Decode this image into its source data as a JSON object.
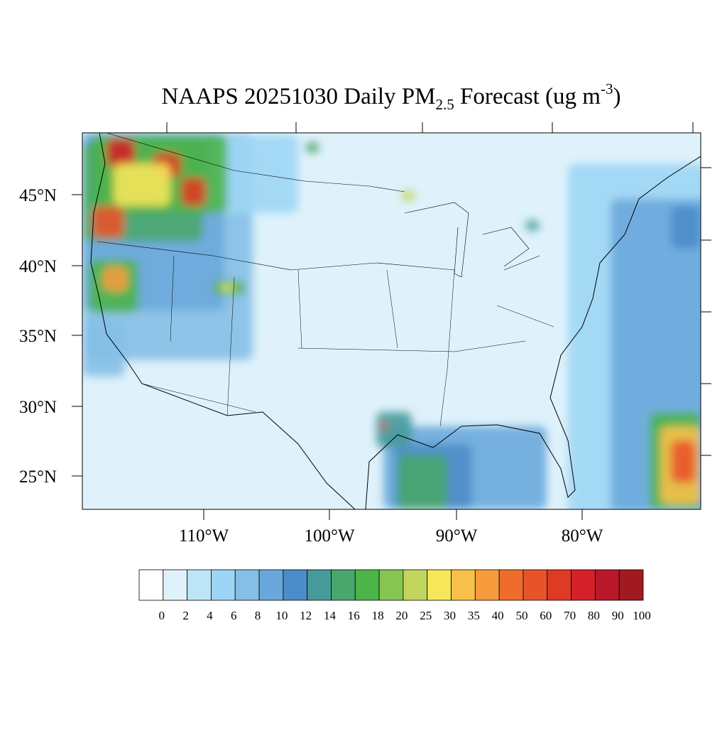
{
  "title": {
    "main": "NAAPS 20251030 Daily PM",
    "subscript": "2.5",
    "middle": " Forecast (ug m",
    "superscript": "-3",
    "end": ")"
  },
  "latitude_labels": [
    "45°N",
    "40°N",
    "35°N",
    "30°N",
    "25°N"
  ],
  "longitude_labels": [
    "110°W",
    "100°W",
    "90°W",
    "80°W"
  ],
  "colorbar": {
    "colors": [
      "#ffffff",
      "#dff2fb",
      "#bde5f7",
      "#9dd6f4",
      "#85bfe6",
      "#6aa8dc",
      "#4c8cc9",
      "#479a9a",
      "#4aa66c",
      "#4cb449",
      "#86c552",
      "#c2d55c",
      "#f5e65a",
      "#f7c048",
      "#f59b3c",
      "#f06c2c",
      "#e8542a",
      "#de3b25",
      "#d42029",
      "#b8182a",
      "#a01a20"
    ],
    "labels": [
      0,
      2,
      4,
      6,
      8,
      10,
      12,
      14,
      16,
      18,
      20,
      25,
      30,
      35,
      40,
      50,
      60,
      70,
      80,
      90,
      100
    ]
  }
}
